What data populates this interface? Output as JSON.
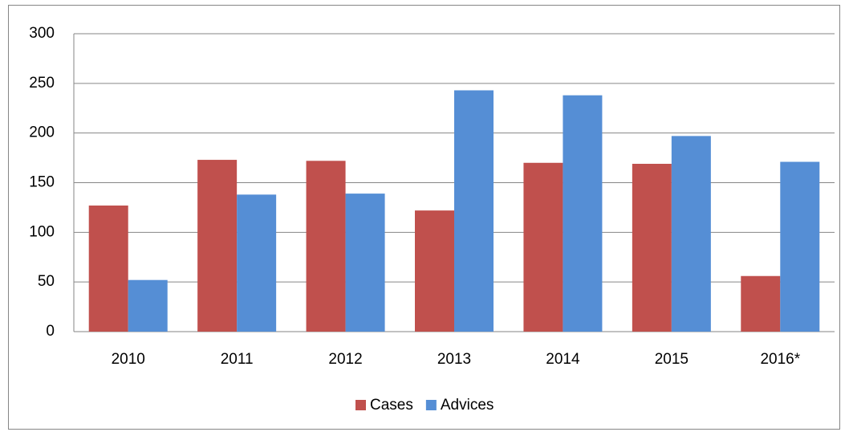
{
  "chart_data": {
    "type": "bar",
    "categories": [
      "2010",
      "2011",
      "2012",
      "2013",
      "2014",
      "2015",
      "2016*"
    ],
    "series": [
      {
        "name": "Cases",
        "color": "#c0504d",
        "values": [
          127,
          173,
          172,
          122,
          170,
          169,
          56
        ]
      },
      {
        "name": "Advices",
        "color": "#558ed5",
        "values": [
          52,
          138,
          139,
          243,
          238,
          197,
          171
        ]
      }
    ],
    "ylim": [
      0,
      300
    ],
    "yticks": [
      0,
      50,
      100,
      150,
      200,
      250,
      300
    ],
    "grid": true,
    "legend": "bottom"
  }
}
